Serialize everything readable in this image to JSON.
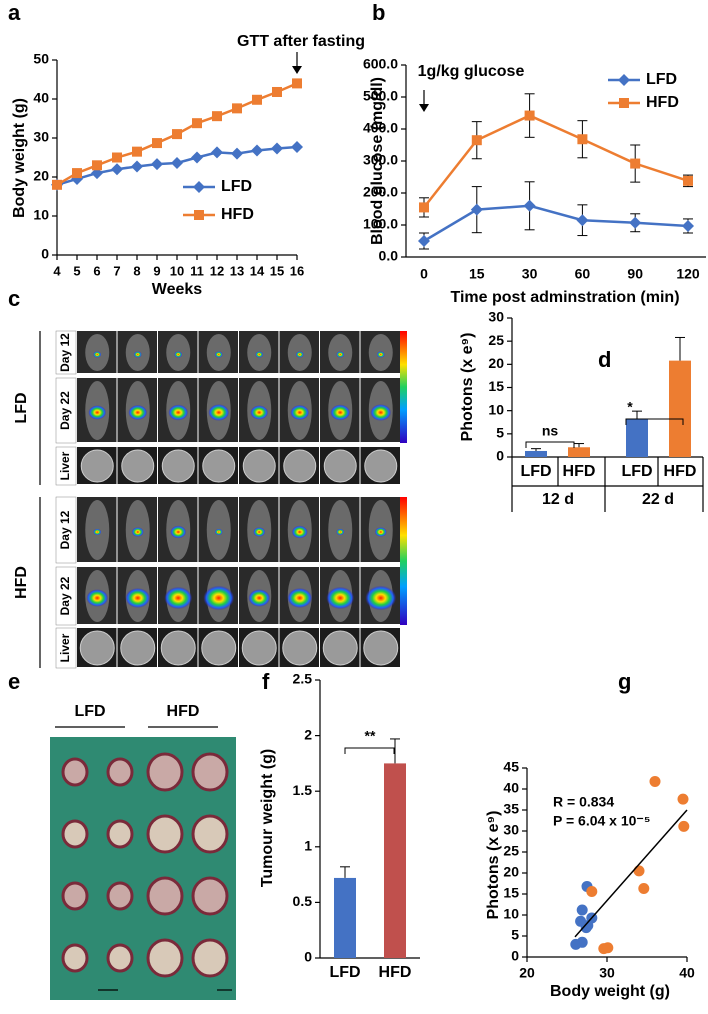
{
  "panel_letters": [
    "a",
    "b",
    "c",
    "d",
    "e",
    "f",
    "g"
  ],
  "chart_data": [
    {
      "type": "line",
      "x": [
        4,
        5,
        6,
        7,
        8,
        9,
        10,
        11,
        12,
        13,
        14,
        15,
        16
      ],
      "xlim": [
        4,
        16
      ],
      "xticks": [
        4,
        5,
        6,
        7,
        8,
        9,
        10,
        11,
        12,
        13,
        14,
        15,
        16
      ],
      "ylim": [
        0,
        50
      ],
      "yticks": [
        0,
        10,
        20,
        30,
        40,
        50
      ],
      "ylabel": "Body weight (g)",
      "xlabel": "Weeks",
      "annotation": "GTT after fasting",
      "legend": "lower right",
      "series": [
        {
          "name": "LFD",
          "color": "#4472c4",
          "marker": "diamond",
          "values": [
            18,
            19.5,
            21,
            22,
            22.7,
            23.3,
            23.6,
            25,
            26.3,
            26,
            26.8,
            27.3,
            27.7
          ]
        },
        {
          "name": "HFD",
          "color": "#ed7d31",
          "marker": "square",
          "values": [
            18,
            21,
            23,
            25,
            26.5,
            28.7,
            31,
            33.8,
            35.6,
            37.6,
            39.8,
            41.8,
            44
          ]
        }
      ]
    },
    {
      "type": "line",
      "categories": [
        "0",
        "15",
        "30",
        "60",
        "90",
        "120"
      ],
      "ylim": [
        0,
        600
      ],
      "yticks": [
        {
          "value": 0,
          "label": "0.0"
        },
        {
          "value": 100,
          "label": "100.0"
        },
        {
          "value": 200,
          "label": "200.0"
        },
        {
          "value": 300,
          "label": "300.0"
        },
        {
          "value": 400,
          "label": "400.0"
        },
        {
          "value": 500,
          "label": "500.0"
        },
        {
          "value": 600,
          "label": "600.0"
        }
      ],
      "ylabel": "Blood glucose (mg/dl)",
      "xlabel": "Time post adminstration (min)",
      "annotation": "1g/kg glucose",
      "legend": "upper right",
      "series": [
        {
          "name": "LFD",
          "color": "#4472c4",
          "marker": "diamond",
          "values": [
            50,
            148,
            160,
            115,
            107,
            97
          ],
          "errors": [
            25,
            72,
            75,
            48,
            28,
            22
          ]
        },
        {
          "name": "HFD",
          "color": "#ed7d31",
          "marker": "square",
          "values": [
            155,
            365,
            442,
            368,
            292,
            238
          ],
          "errors": [
            30,
            58,
            68,
            58,
            58,
            18
          ]
        }
      ]
    },
    {
      "type": "bar",
      "categories": [
        "LFD",
        "HFD",
        "LFD",
        "HFD"
      ],
      "groups": [
        "12 d",
        "22 d"
      ],
      "values": [
        1.3,
        2.1,
        8.3,
        20.8
      ],
      "errors": [
        0.5,
        0.8,
        1.6,
        5.0
      ],
      "colors": [
        "#4472c4",
        "#ed7d31",
        "#4472c4",
        "#ed7d31"
      ],
      "ylim": [
        0,
        30
      ],
      "yticks": [
        0,
        5,
        10,
        15,
        20,
        25,
        30
      ],
      "ylabel": "Photons (x e⁹)",
      "annotations": [
        "ns",
        "*"
      ]
    },
    {
      "type": "bar",
      "categories": [
        "LFD",
        "HFD"
      ],
      "values": [
        0.72,
        1.75
      ],
      "errors": [
        0.1,
        0.22
      ],
      "colors": [
        "#4472c4",
        "#c0504d"
      ],
      "ylim": [
        0,
        2.5
      ],
      "yticks": [
        0,
        0.5,
        1,
        1.5,
        2,
        2.5
      ],
      "ylabel": "Tumour weight (g)",
      "annotations": [
        "**"
      ]
    },
    {
      "type": "scatter",
      "xlim": [
        20,
        40
      ],
      "xticks": [
        20,
        30,
        40
      ],
      "ylim": [
        0,
        45
      ],
      "yticks": [
        0,
        5,
        10,
        15,
        20,
        25,
        30,
        35,
        40,
        45
      ],
      "xlabel": "Body weight (g)",
      "ylabel": "Photons (x e⁹)",
      "annotations": [
        "R = 0.834",
        "P = 6.04 x 10⁻⁵"
      ],
      "series": [
        {
          "color": "#4472c4",
          "x": [
            26.1,
            26.9,
            27.4,
            26.7,
            27.6,
            28.1,
            26.9,
            27.5
          ],
          "values": [
            3,
            3.5,
            7,
            8.5,
            7.5,
            9.3,
            11.2,
            16.8
          ]
        },
        {
          "color": "#ed7d31",
          "x": [
            28.1,
            29.6,
            30.1,
            34.0,
            34.6,
            36.0,
            39.5,
            39.6
          ],
          "values": [
            15.6,
            2,
            2.2,
            20.5,
            16.3,
            41.8,
            37.6,
            31.1
          ]
        }
      ],
      "trend": {
        "x": [
          26,
          40
        ],
        "y": [
          4.8,
          35
        ]
      }
    }
  ],
  "images": [
    {
      "groups": [
        "LFD",
        "HFD"
      ],
      "rows": [
        "Day 12",
        "Day 22",
        "Liver"
      ]
    },
    {
      "columns": [
        "LFD",
        "HFD"
      ]
    }
  ]
}
